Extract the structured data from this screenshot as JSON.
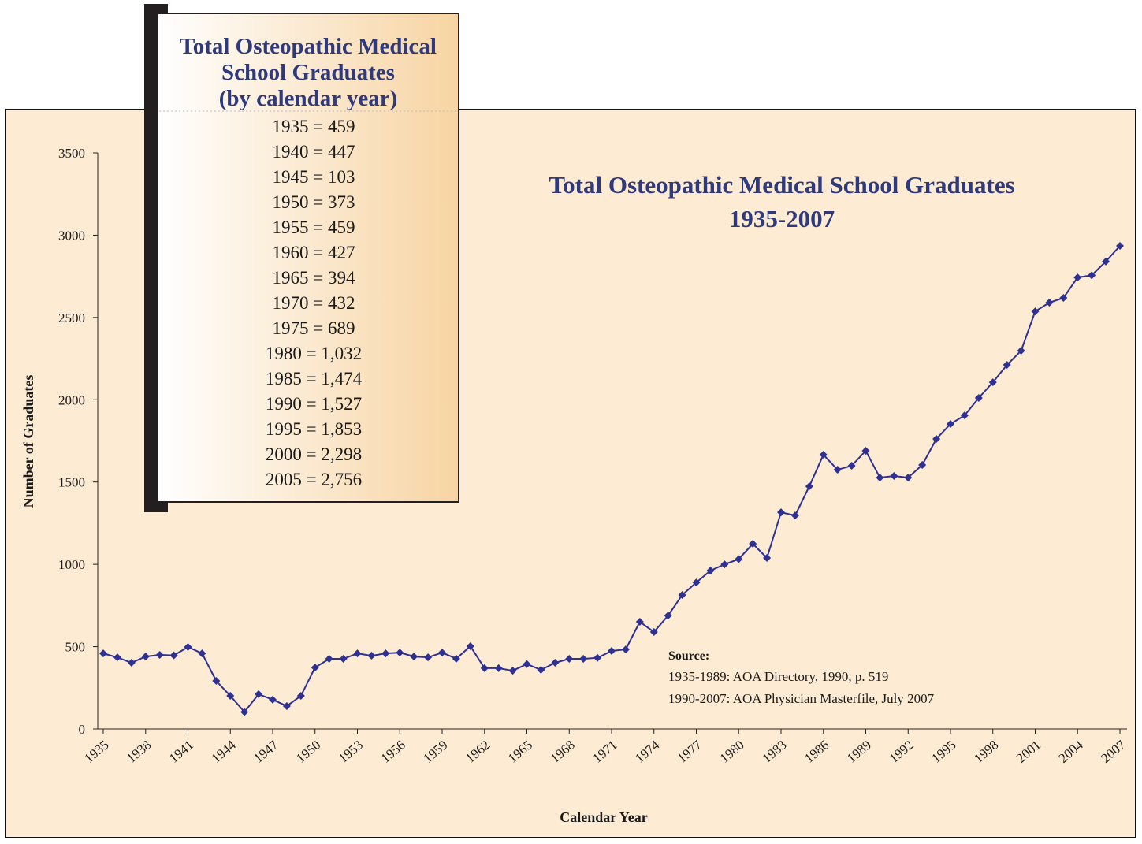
{
  "chart_data": {
    "type": "line",
    "title": [
      "Total Osteopathic Medical School Graduates",
      "1935-2007"
    ],
    "xlabel": "Calendar Year",
    "ylabel": "Number of Graduates",
    "x": [
      1935,
      1936,
      1937,
      1938,
      1939,
      1940,
      1941,
      1942,
      1943,
      1944,
      1945,
      1946,
      1947,
      1948,
      1949,
      1950,
      1951,
      1952,
      1953,
      1954,
      1955,
      1956,
      1957,
      1958,
      1959,
      1960,
      1961,
      1962,
      1963,
      1964,
      1965,
      1966,
      1967,
      1968,
      1969,
      1970,
      1971,
      1972,
      1973,
      1974,
      1975,
      1976,
      1977,
      1978,
      1979,
      1980,
      1981,
      1982,
      1983,
      1984,
      1985,
      1986,
      1987,
      1988,
      1989,
      1990,
      1991,
      1992,
      1993,
      1994,
      1995,
      1996,
      1997,
      1998,
      1999,
      2000,
      2001,
      2002,
      2003,
      2004,
      2005,
      2006,
      2007
    ],
    "series": [
      {
        "name": "Graduates",
        "color": "#2e3192",
        "values": [
          459,
          435,
          402,
          440,
          450,
          447,
          498,
          459,
          292,
          201,
          103,
          211,
          178,
          139,
          201,
          373,
          426,
          426,
          459,
          445,
          459,
          464,
          440,
          435,
          464,
          427,
          503,
          369,
          369,
          354,
          394,
          359,
          402,
          426,
          426,
          432,
          474,
          483,
          651,
          589,
          689,
          814,
          890,
          962,
          1000,
          1032,
          1125,
          1039,
          1316,
          1297,
          1474,
          1666,
          1575,
          1599,
          1690,
          1527,
          1537,
          1527,
          1604,
          1762,
          1853,
          1905,
          2011,
          2106,
          2212,
          2298,
          2537,
          2590,
          2619,
          2743,
          2756,
          2840,
          2935
        ]
      }
    ],
    "xlim": [
      1935,
      2007
    ],
    "xticks": [
      1935,
      1938,
      1941,
      1944,
      1947,
      1950,
      1953,
      1956,
      1959,
      1962,
      1965,
      1968,
      1971,
      1974,
      1977,
      1980,
      1983,
      1986,
      1989,
      1992,
      1995,
      1998,
      2001,
      2004,
      2007
    ],
    "ylim": [
      0,
      3500
    ],
    "yticks": [
      0,
      500,
      1000,
      1500,
      2000,
      2500,
      3000,
      3500
    ],
    "grid": false,
    "source": {
      "heading": "Source:",
      "lines": [
        "1935-1989: AOA Directory, 1990, p. 519",
        "1990-2007: AOA Physician Masterfile, July 2007"
      ]
    },
    "inset": {
      "title_lines": [
        "Total Osteopathic Medical",
        "School Graduates",
        "(by calendar year)"
      ],
      "rows": [
        "1935 = 459",
        "1940 = 447",
        "1945 = 103",
        "1950 = 373",
        "1955 = 459",
        "1960 = 427",
        "1965 = 394",
        "1970 = 432",
        "1975 = 689",
        "1980 = 1,032",
        "1985 = 1,474",
        "1990 = 1,527",
        "1995 = 1,853",
        "2000 = 2,298",
        "2005 = 2,756"
      ]
    }
  }
}
